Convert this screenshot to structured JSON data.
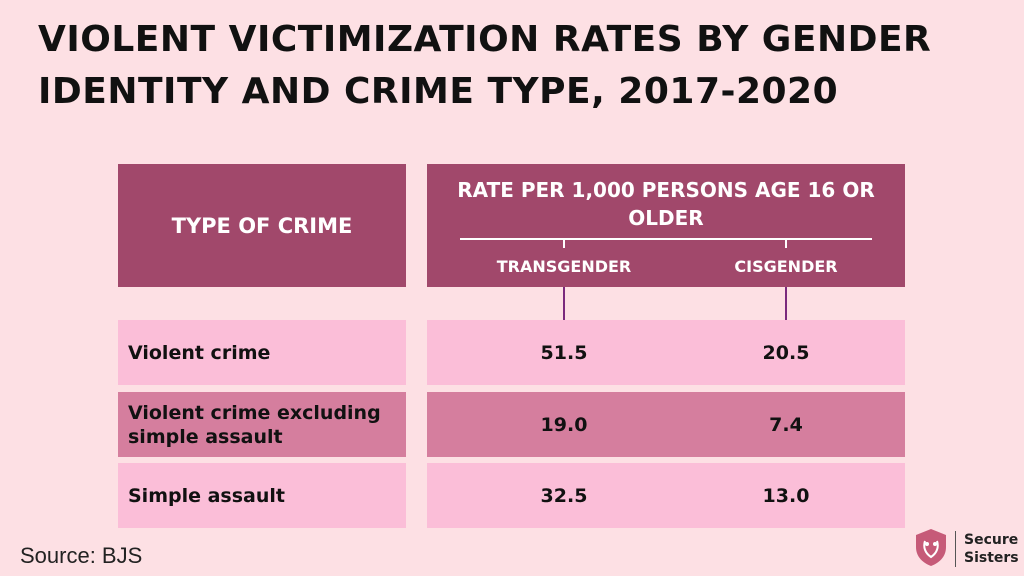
{
  "title": "VIOLENT VICTIMIZATION RATES BY GENDER IDENTITY AND CRIME TYPE, 2017-2020",
  "chart_data": {
    "type": "table",
    "title": "VIOLENT VICTIMIZATION RATES BY GENDER IDENTITY AND CRIME TYPE, 2017-2020",
    "row_header": "TYPE OF CRIME",
    "group_header": "RATE PER 1,000 PERSONS AGE 16 OR OLDER",
    "columns": [
      "TRANSGENDER",
      "CISGENDER"
    ],
    "rows": [
      {
        "label": "Violent crime",
        "values": [
          "51.5",
          "20.5"
        ]
      },
      {
        "label": "Violent crime excluding simple assault",
        "values": [
          "19.0",
          "7.4"
        ]
      },
      {
        "label": "Simple assault",
        "values": [
          "32.5",
          "13.0"
        ]
      }
    ]
  },
  "source": "Source: BJS",
  "logo": {
    "line1": "Secure",
    "line2": "Sisters",
    "icon": "shield-icon"
  },
  "colors": {
    "background": "#fde0e4",
    "header": "#a1486b",
    "row_light": "#fbbed8",
    "row_dark": "#d57e9e"
  }
}
